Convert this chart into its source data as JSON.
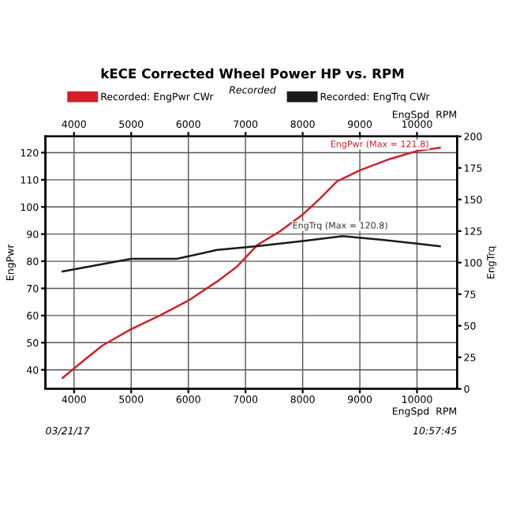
{
  "chart_data": {
    "type": "line",
    "title": "kECE Corrected Wheel Power HP vs. RPM",
    "subtitle": "Recorded",
    "xlabel": "EngSpd  RPM",
    "x2label": "EngSpd  RPM",
    "ylabel": "EngPwr",
    "y2label": "EngTrq",
    "series": [
      {
        "name": "Recorded: EngPwr CWr",
        "color": "#d0202a",
        "x": [
          3800,
          4200,
          4500,
          5000,
          5500,
          6000,
          6500,
          6850,
          7210,
          7600,
          7990,
          8300,
          8600,
          9000,
          9500,
          10000,
          10400
        ],
        "values": [
          37,
          44,
          49,
          55,
          60,
          65.5,
          72.5,
          78,
          86,
          91,
          97,
          103,
          109.4,
          113.5,
          117.5,
          120.6,
          121.8
        ]
      },
      {
        "name": "Recorded: EngTrq CWr",
        "color": "#1a1a1a",
        "axis": "y2",
        "x": [
          3800,
          4400,
          5000,
          5800,
          6500,
          7200,
          8000,
          8700,
          9400,
          10000,
          10400
        ],
        "values": [
          93,
          98,
          103,
          103,
          110,
          113,
          117,
          121,
          118,
          115,
          113
        ]
      }
    ],
    "xlim": [
      3500,
      10700
    ],
    "xticks": [
      4000,
      5000,
      6000,
      7000,
      8000,
      9000,
      10000
    ],
    "x2lim": [
      3500,
      10700
    ],
    "x2ticks": [
      4000,
      5000,
      6000,
      7000,
      8000,
      9000,
      10000
    ],
    "ylim": [
      33,
      126
    ],
    "yticks": [
      40,
      50,
      60,
      70,
      80,
      90,
      100,
      110,
      120
    ],
    "y2lim": [
      0,
      200
    ],
    "y2ticks": [
      0,
      25,
      50,
      75,
      100,
      125,
      150,
      175,
      200
    ],
    "grid": true,
    "legend": "top",
    "marker": "none",
    "line_style": "solid",
    "annotations": [
      {
        "text": "EngPwr (Max = 121.8)",
        "x": 10400,
        "y": 121.8
      },
      "EngTrq (Max = 120.8)",
      "03/21/17",
      "10:57:45"
    ]
  }
}
